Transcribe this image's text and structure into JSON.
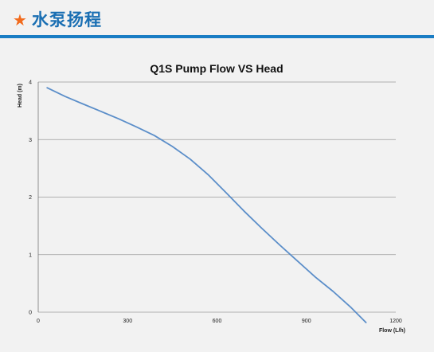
{
  "header": {
    "star_icon": "star-icon",
    "title": "水泵扬程",
    "accent_color": "#f26b1d",
    "brand_color": "#1a6fb3"
  },
  "chart_data": {
    "type": "line",
    "title": "Q1S  Pump Flow VS Head",
    "xlabel": "Flow (L/h)",
    "ylabel": "Head (m)",
    "xlim": [
      0,
      1200
    ],
    "ylim": [
      0,
      4
    ],
    "xticks": [
      "0",
      "300",
      "600",
      "900",
      "1200"
    ],
    "yticks": [
      "0",
      "1",
      "2",
      "3",
      "4"
    ],
    "grid": "horizontal",
    "line_color": "#5b8ec9",
    "series": [
      {
        "x": [
          30,
          90,
          150,
          210,
          270,
          330,
          390,
          450,
          510,
          570,
          630,
          690,
          750,
          810,
          870,
          930,
          990,
          1050,
          1100
        ],
        "y": [
          3.9,
          3.75,
          3.62,
          3.49,
          3.36,
          3.22,
          3.07,
          2.88,
          2.66,
          2.39,
          2.08,
          1.76,
          1.46,
          1.17,
          0.89,
          0.61,
          0.36,
          0.08,
          -0.18
        ]
      }
    ]
  }
}
